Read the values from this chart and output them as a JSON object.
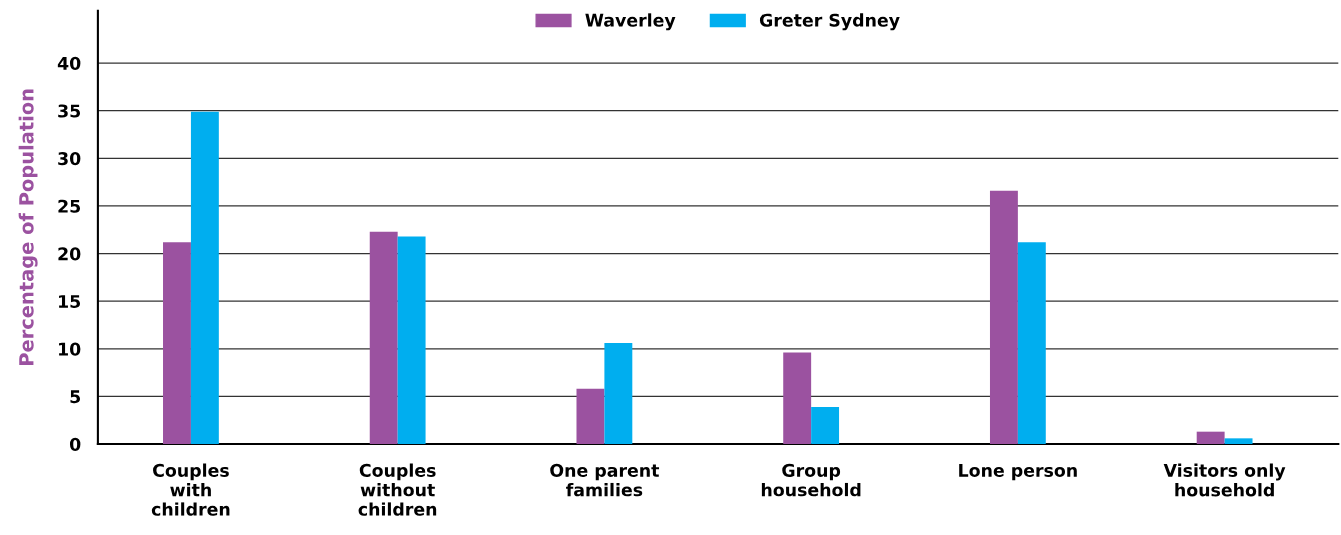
{
  "chart_data": {
    "type": "bar",
    "ylabel": "Percentage of Population",
    "categories": [
      "Couples\nwith\nchildren",
      "Couples\nwithout\nchildren",
      "One parent\nfamilies",
      "Group\nhousehold",
      "Lone person",
      "Visitors only\nhousehold"
    ],
    "series": [
      {
        "name": "Waverley",
        "color": "#9b52a0",
        "values": [
          21.2,
          22.3,
          5.8,
          9.6,
          26.6,
          1.3
        ]
      },
      {
        "name": "Greter Sydney",
        "color": "#00aeef",
        "values": [
          34.9,
          21.8,
          10.6,
          3.9,
          21.2,
          0.6
        ]
      }
    ],
    "ylim": [
      0,
      45.5
    ],
    "yticks": [
      0,
      5,
      10,
      15,
      20,
      25,
      30,
      35,
      40
    ],
    "grid": "y",
    "legend": "top"
  }
}
